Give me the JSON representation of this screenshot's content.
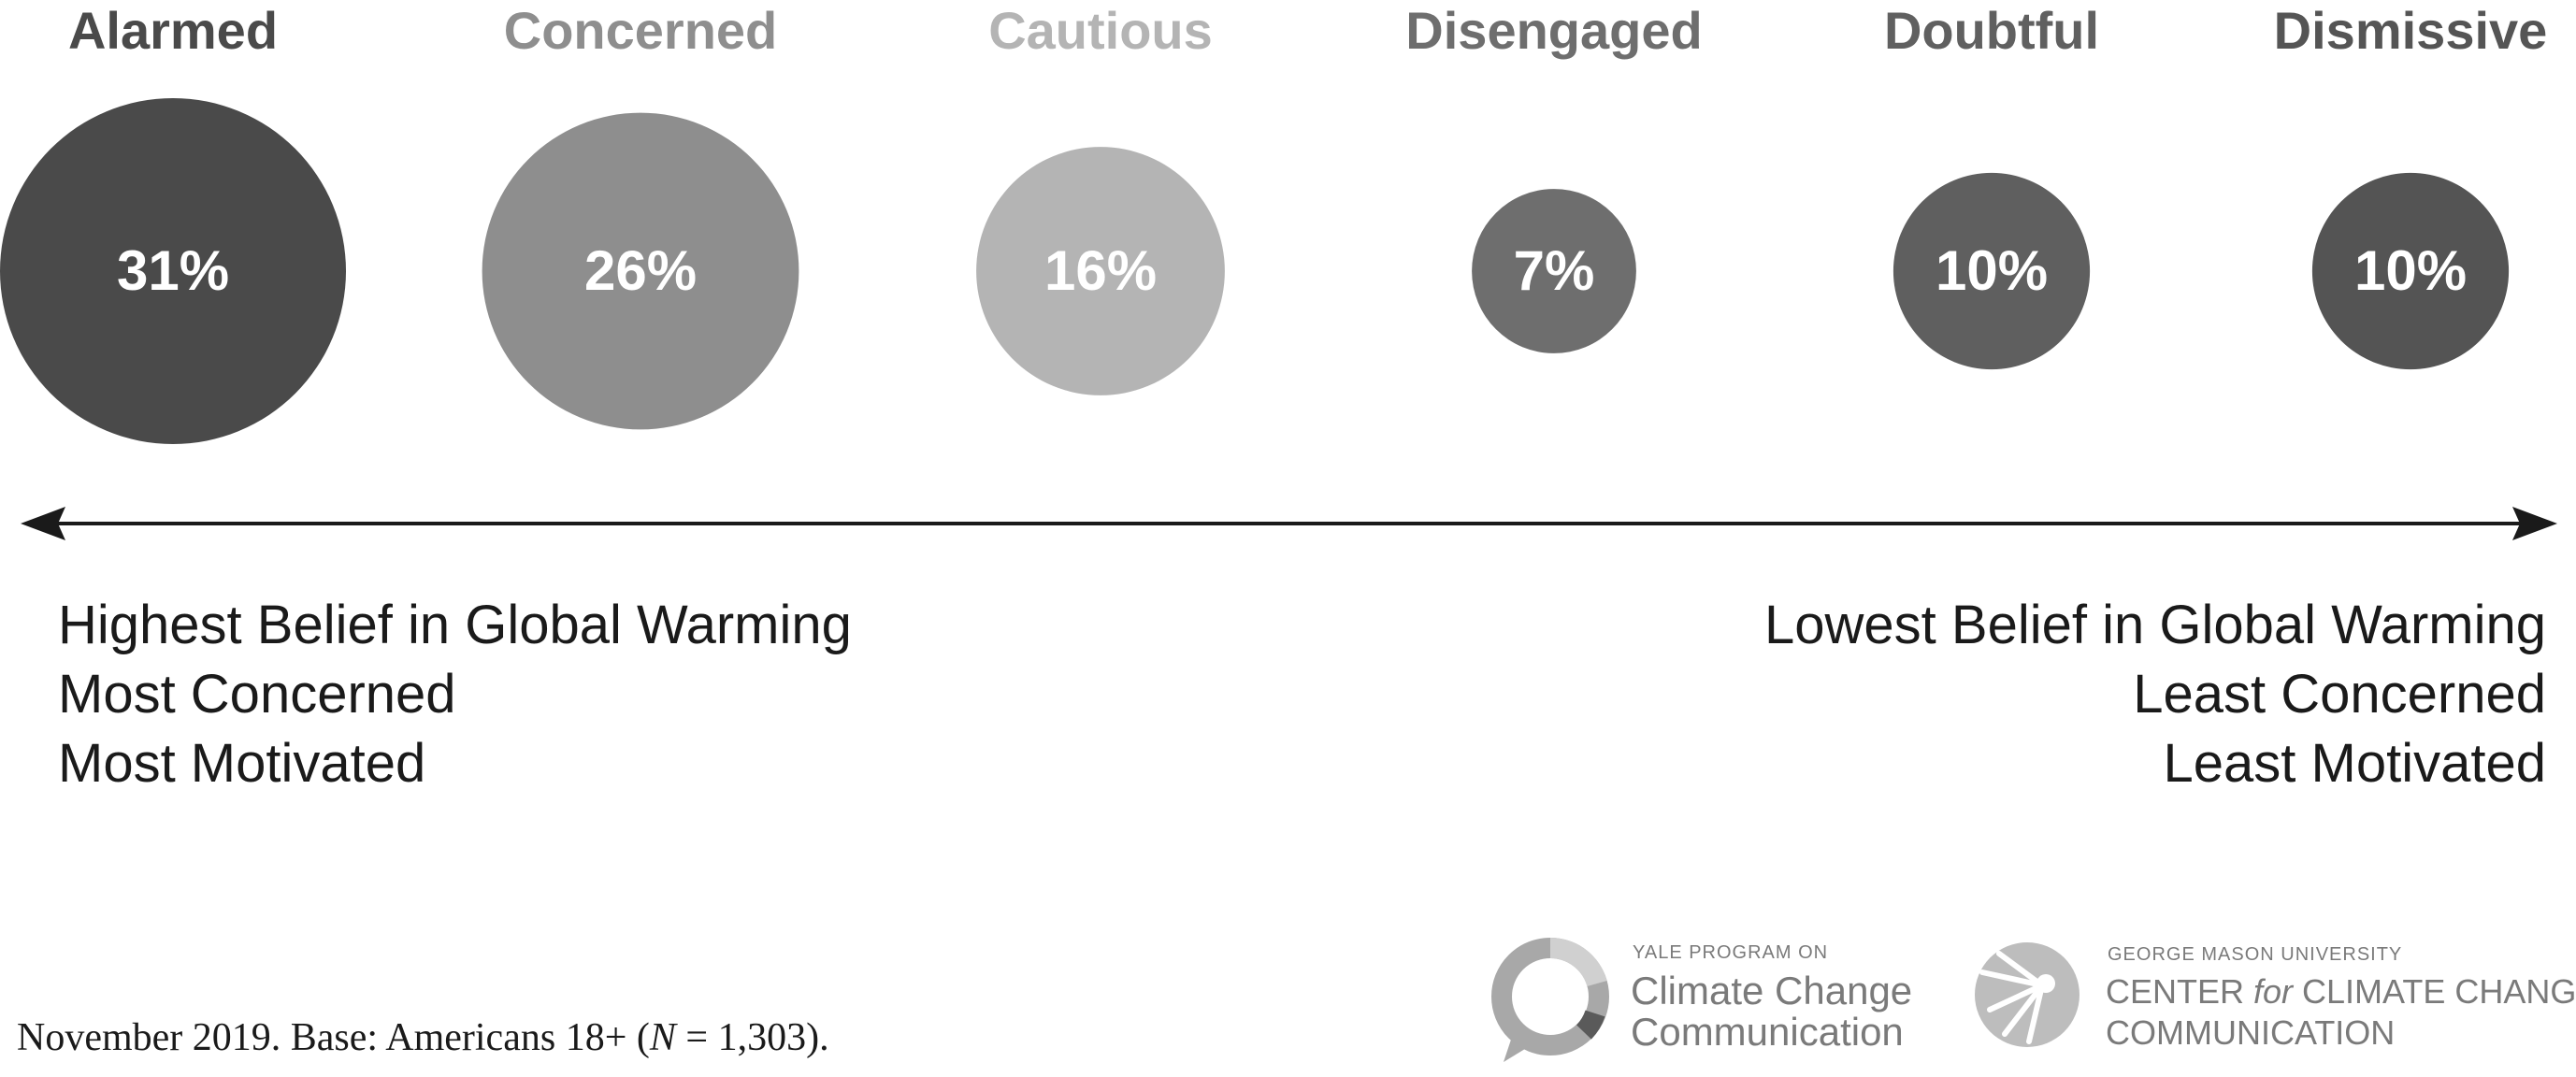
{
  "chart_data": {
    "type": "bubble",
    "categories": [
      "Alarmed",
      "Concerned",
      "Cautious",
      "Disengaged",
      "Doubtful",
      "Dismissive"
    ],
    "values": [
      31,
      26,
      16,
      7,
      10,
      10
    ],
    "value_labels": [
      "31%",
      "26%",
      "16%",
      "7%",
      "10%",
      "10%"
    ],
    "colors": [
      "#4a4a4a",
      "#8e8e8e",
      "#b4b4b4",
      "#6e6e6e",
      "#5f5f5f",
      "#545454"
    ],
    "label_colors": [
      "#4a4a4a",
      "#8e8e8e",
      "#b4b4b4",
      "#6e6e6e",
      "#606060",
      "#555555"
    ]
  },
  "scale": {
    "left_lines": [
      "Highest Belief in Global Warming",
      "Most Concerned",
      "Most Motivated"
    ],
    "right_lines": [
      "Lowest Belief in Global Warming",
      "Least Concerned",
      "Least Motivated"
    ]
  },
  "footnote": {
    "before": "November 2019. Base: Americans 18+ (",
    "italic": "N",
    "after": " = 1,303)."
  },
  "logos": {
    "yale": {
      "small": "YALE PROGRAM ON",
      "line1": "Climate Change",
      "line2": "Communication"
    },
    "gmu": {
      "small": "GEORGE MASON UNIVERSITY",
      "line1_a": "CENTER ",
      "line1_for": "for",
      "line1_b": " CLIMATE CHANGE",
      "line2": "COMMUNICATION"
    }
  }
}
